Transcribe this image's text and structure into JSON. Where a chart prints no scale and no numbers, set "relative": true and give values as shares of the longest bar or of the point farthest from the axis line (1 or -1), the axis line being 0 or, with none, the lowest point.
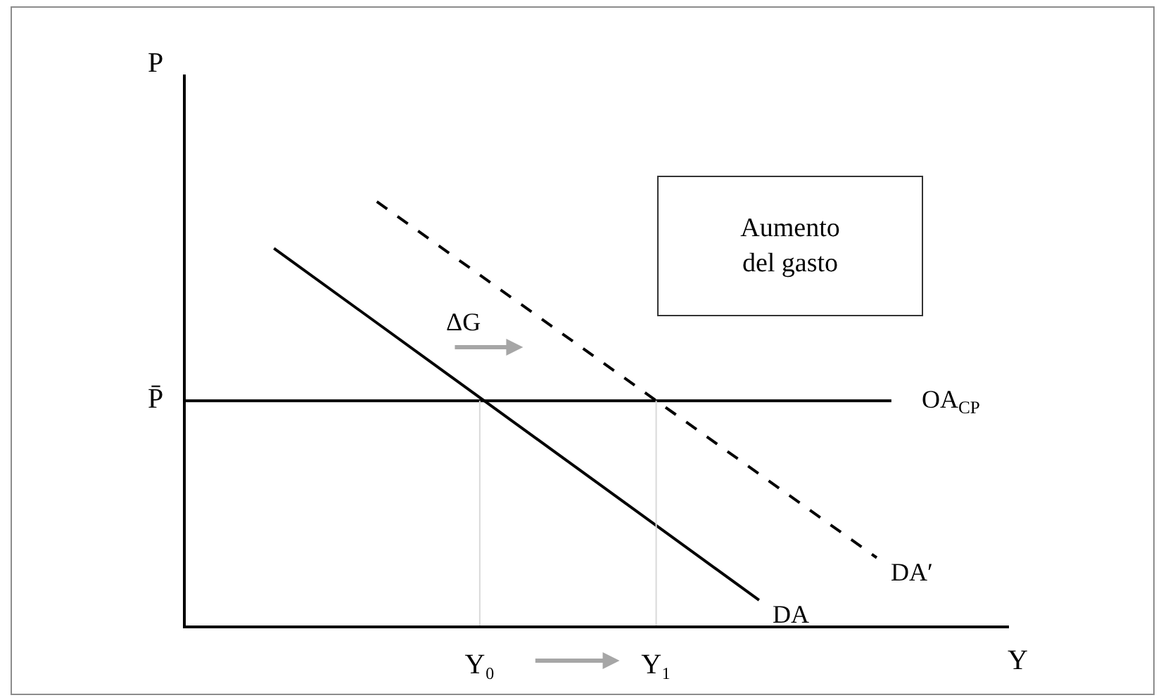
{
  "chart_data": {
    "type": "line",
    "relative": true,
    "xlabel": "Y",
    "ylabel": "P",
    "categories": [
      null,
      null,
      null,
      null,
      null,
      null,
      null,
      null,
      null,
      null,
      null,
      null,
      null,
      null,
      null,
      null,
      null,
      null,
      null,
      null,
      "Y₀",
      null,
      null,
      null,
      null,
      null,
      null,
      null,
      null,
      null,
      null,
      null,
      "Y₁",
      null,
      null,
      null,
      null,
      null,
      null,
      null,
      null,
      null,
      null,
      null,
      null,
      null,
      null,
      null,
      null,
      null,
      null,
      null,
      null,
      null,
      null,
      null,
      null
    ],
    "series": [
      {
        "name": "DA",
        "color": "#000000",
        "values": [
          null,
          null,
          null,
          null,
          null,
          null,
          0.89,
          null,
          null,
          null,
          null,
          null,
          null,
          null,
          null,
          null,
          null,
          null,
          null,
          null,
          null,
          null,
          null,
          null,
          null,
          null,
          null,
          null,
          null,
          null,
          null,
          null,
          null,
          null,
          null,
          null,
          null,
          null,
          null,
          0.06,
          null,
          null,
          null,
          null,
          null,
          null,
          null,
          null,
          null,
          null,
          null,
          null,
          null,
          null,
          null,
          null,
          null
        ]
      },
      {
        "name": "DA′",
        "color": "#000000",
        "line_style": "dashed",
        "values": [
          null,
          null,
          null,
          null,
          null,
          null,
          null,
          null,
          null,
          null,
          null,
          null,
          null,
          1,
          null,
          null,
          null,
          null,
          null,
          null,
          null,
          null,
          null,
          null,
          null,
          null,
          null,
          null,
          null,
          null,
          null,
          null,
          null,
          null,
          null,
          null,
          null,
          null,
          null,
          null,
          null,
          null,
          null,
          null,
          null,
          null,
          null,
          0.16,
          null,
          null,
          null,
          null,
          null,
          null,
          null,
          null,
          null
        ]
      },
      {
        "name": "OA$_{CP}$",
        "color": "#000000",
        "values": [
          0.53,
          null,
          null,
          null,
          null,
          null,
          null,
          null,
          null,
          null,
          null,
          null,
          null,
          null,
          null,
          null,
          null,
          null,
          null,
          null,
          null,
          null,
          null,
          null,
          null,
          null,
          null,
          null,
          null,
          null,
          null,
          null,
          null,
          null,
          null,
          null,
          null,
          null,
          null,
          null,
          null,
          null,
          null,
          null,
          null,
          null,
          null,
          null,
          0.53,
          null,
          null,
          null,
          null,
          null,
          null,
          null,
          null
        ]
      },
      {
        "color": "#d9d9d9",
        "x": [
          "Y₀",
          "Y₀"
        ],
        "values": [
          0,
          0.53
        ]
      },
      {
        "color": "#d9d9d9",
        "x": [
          "Y₁",
          "Y₁"
        ],
        "values": [
          0,
          0.53
        ]
      }
    ],
    "annotations": [
      "P̄",
      "ΔG",
      "Aumento del gasto"
    ]
  }
}
